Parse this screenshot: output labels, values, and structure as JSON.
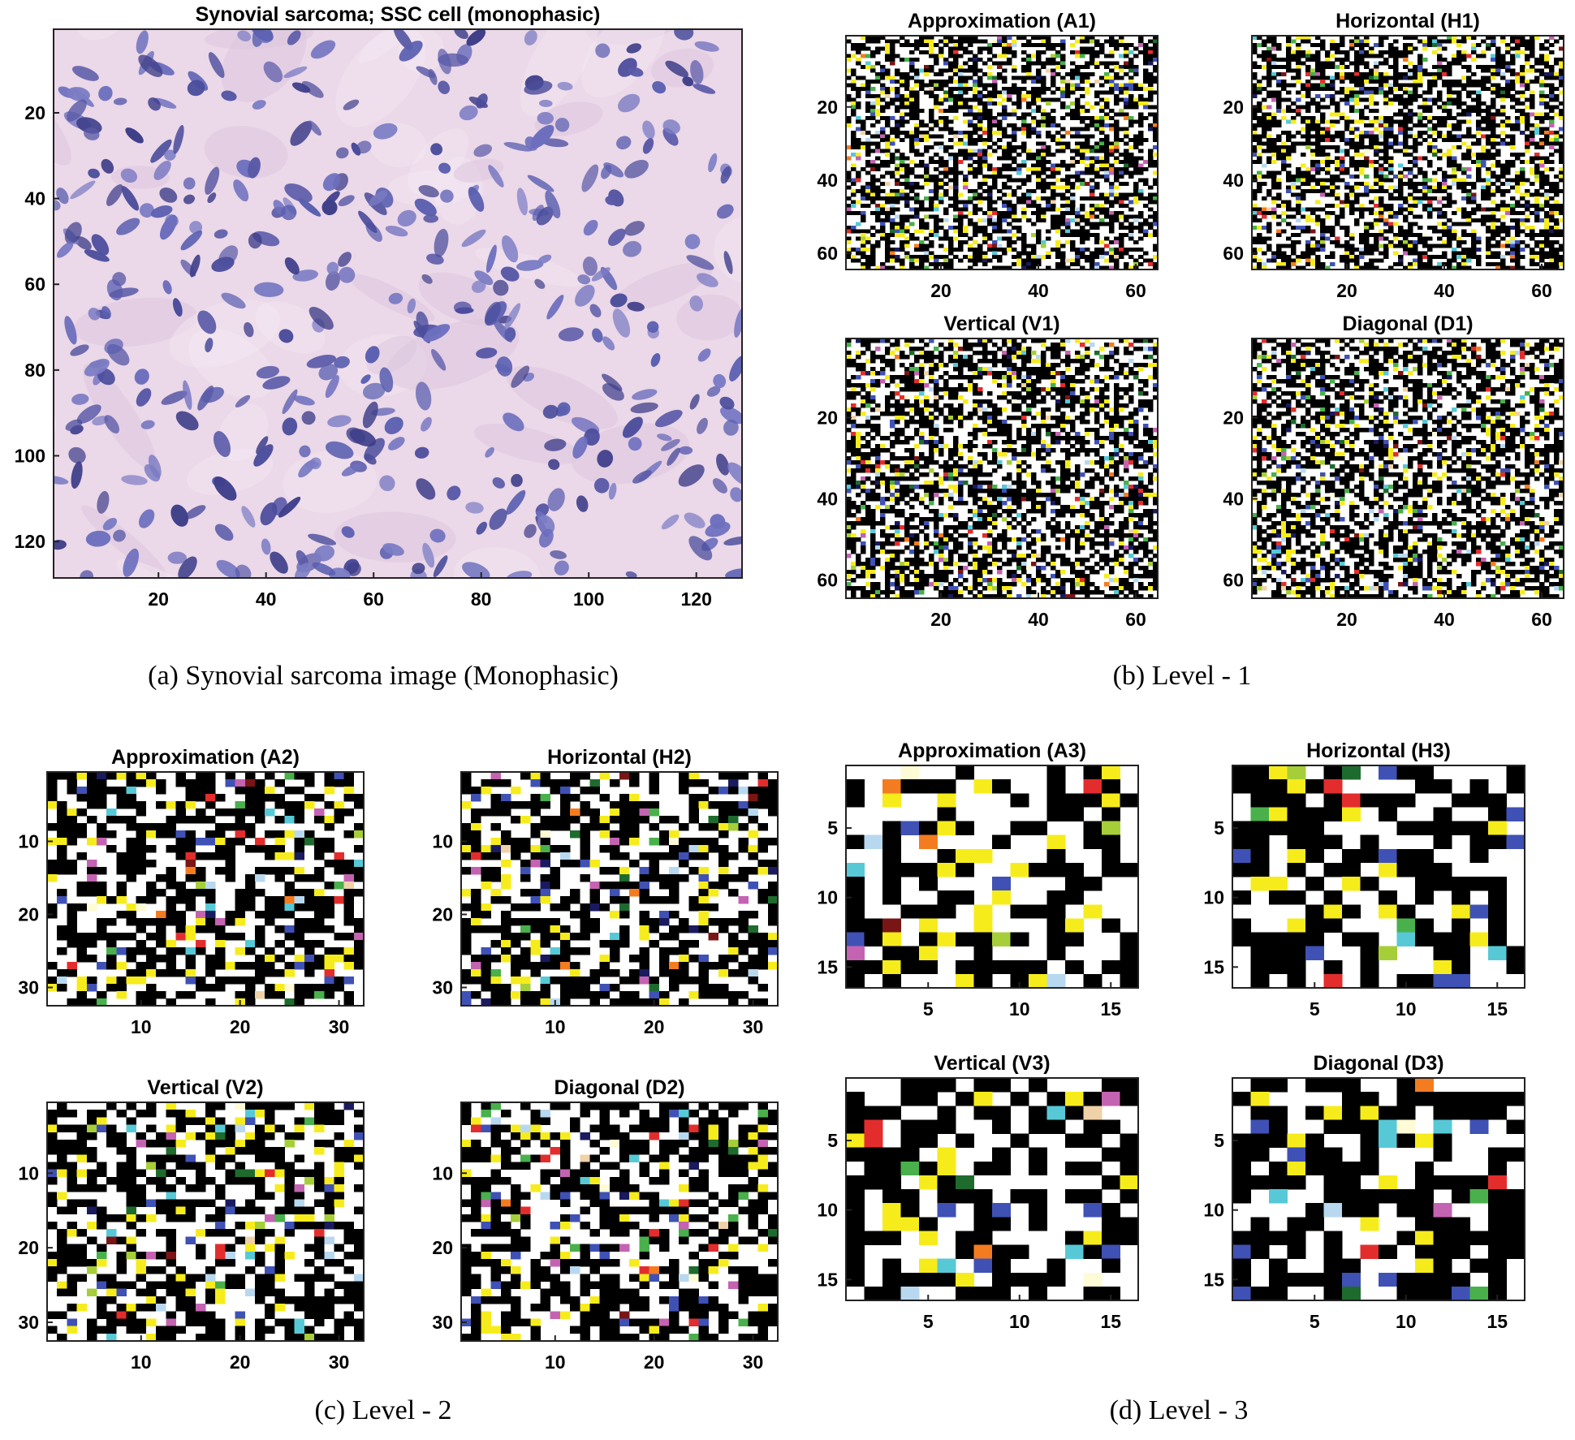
{
  "chart_data": [
    {
      "type": "heatmap",
      "panel_id": "a",
      "title": "Synovial sarcoma; SSC cell (monophasic)",
      "caption": "(a) Synovial sarcoma image (Monophasic)",
      "rendering": "histology image: pink stroma with dense purple-blue spindle nuclei",
      "size": [
        128,
        128
      ],
      "xlim": [
        0.5,
        128.5
      ],
      "ylim": [
        0.5,
        128.5
      ],
      "xticks": [
        20,
        40,
        60,
        80,
        100,
        120
      ],
      "yticks": [
        20,
        40,
        60,
        80,
        100,
        120
      ]
    },
    {
      "type": "heatmap",
      "panel_id": "b",
      "caption": "(b) Level - 1",
      "subplots": [
        {
          "title": "Approximation (A1)",
          "size": [
            64,
            64
          ],
          "xticks": [
            20,
            40,
            60
          ],
          "yticks": [
            20,
            40,
            60
          ]
        },
        {
          "title": "Horizontal (H1)",
          "size": [
            64,
            64
          ],
          "xticks": [
            20,
            40,
            60
          ],
          "yticks": [
            20,
            40,
            60
          ]
        },
        {
          "title": "Vertical (V1)",
          "size": [
            64,
            64
          ],
          "xticks": [
            20,
            40,
            60
          ],
          "yticks": [
            20,
            40,
            60
          ]
        },
        {
          "title": "Diagonal (D1)",
          "size": [
            64,
            64
          ],
          "xticks": [
            20,
            40,
            60
          ],
          "yticks": [
            20,
            40,
            60
          ]
        }
      ]
    },
    {
      "type": "heatmap",
      "panel_id": "c",
      "caption": "(c) Level - 2",
      "subplots": [
        {
          "title": "Approximation (A2)",
          "size": [
            32,
            32
          ],
          "xticks": [
            10,
            20,
            30
          ],
          "yticks": [
            10,
            20,
            30
          ]
        },
        {
          "title": "Horizontal (H2)",
          "size": [
            32,
            32
          ],
          "xticks": [
            10,
            20,
            30
          ],
          "yticks": [
            10,
            20,
            30
          ]
        },
        {
          "title": "Vertical (V2)",
          "size": [
            32,
            32
          ],
          "xticks": [
            10,
            20,
            30
          ],
          "yticks": [
            10,
            20,
            30
          ]
        },
        {
          "title": "Diagonal (D2)",
          "size": [
            32,
            32
          ],
          "xticks": [
            10,
            20,
            30
          ],
          "yticks": [
            10,
            20,
            30
          ]
        }
      ]
    },
    {
      "type": "heatmap",
      "panel_id": "d",
      "caption": "(d) Level - 3",
      "subplots": [
        {
          "title": "Approximation (A3)",
          "size": [
            16,
            16
          ],
          "xticks": [
            5,
            10,
            15
          ],
          "yticks": [
            5,
            10,
            15
          ]
        },
        {
          "title": "Horizontal (H3)",
          "size": [
            16,
            16
          ],
          "xticks": [
            5,
            10,
            15
          ],
          "yticks": [
            5,
            10,
            15
          ]
        },
        {
          "title": "Vertical (V3)",
          "size": [
            16,
            16
          ],
          "xticks": [
            5,
            10,
            15
          ],
          "yticks": [
            5,
            10,
            15
          ]
        },
        {
          "title": "Diagonal (D3)",
          "size": [
            16,
            16
          ],
          "xticks": [
            5,
            10,
            15
          ],
          "yticks": [
            5,
            10,
            15
          ]
        }
      ]
    }
  ],
  "colors": {
    "stroma": "#ebd8e8",
    "nucleus": "#5c5aa6",
    "coefficient_palette": [
      "#000000",
      "#ffffff",
      "#f6ec1c",
      "#3f51b5",
      "#e32d2d",
      "#49b04b",
      "#57c9d6",
      "#c463b1",
      "#1a1a5e",
      "#b8d8f0",
      "#1e6b2e",
      "#f0d2a8",
      "#7a1515",
      "#f47c20",
      "#a6ce39",
      "#fffbd6"
    ],
    "palette_weights": [
      44,
      42,
      6,
      2,
      0.7,
      0.8,
      0.7,
      0.7,
      0.6,
      0.5,
      0.4,
      0.3,
      0.3,
      0.3,
      0.4,
      0.3
    ]
  }
}
